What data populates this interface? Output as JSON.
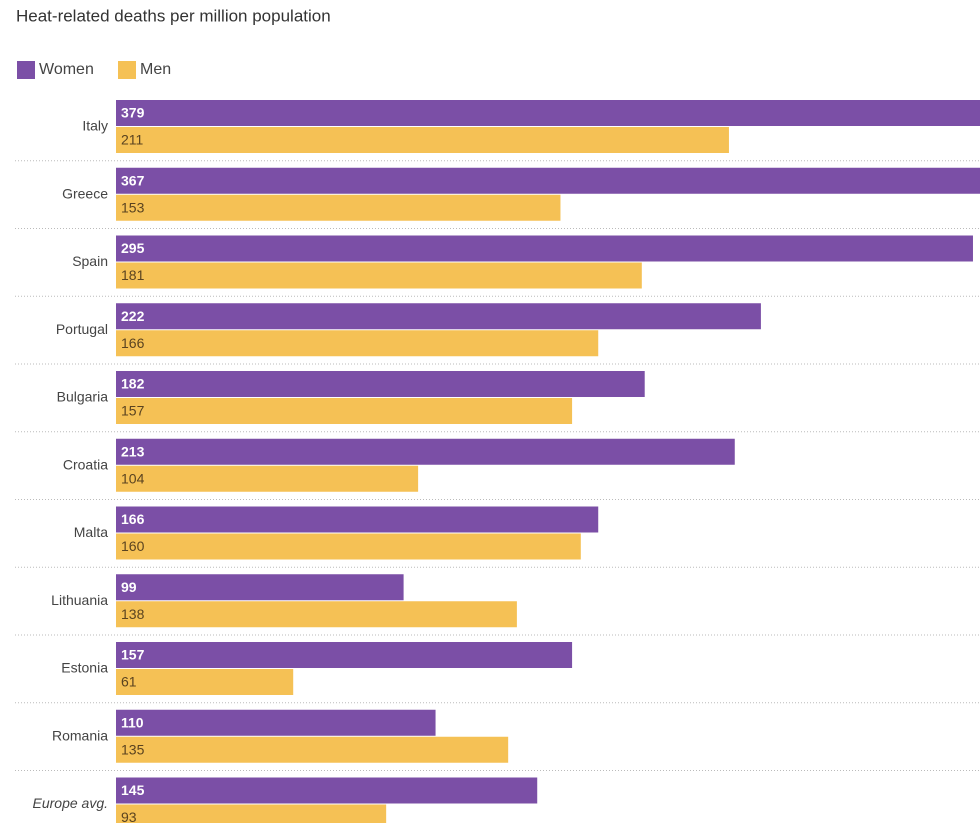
{
  "chart_data": {
    "type": "bar",
    "orientation": "horizontal",
    "title": "Heat-related deaths per million population",
    "categories": [
      "Italy",
      "Greece",
      "Spain",
      "Portugal",
      "Bulgaria",
      "Croatia",
      "Malta",
      "Lithuania",
      "Estonia",
      "Romania",
      "Europe avg."
    ],
    "series": [
      {
        "name": "Women",
        "color": "#7b4fa6",
        "values": [
          379,
          367,
          295,
          222,
          182,
          213,
          166,
          99,
          157,
          110,
          145
        ]
      },
      {
        "name": "Men",
        "color": "#f5c155",
        "values": [
          211,
          153,
          181,
          166,
          157,
          104,
          160,
          138,
          61,
          135,
          93
        ]
      }
    ]
  }
}
